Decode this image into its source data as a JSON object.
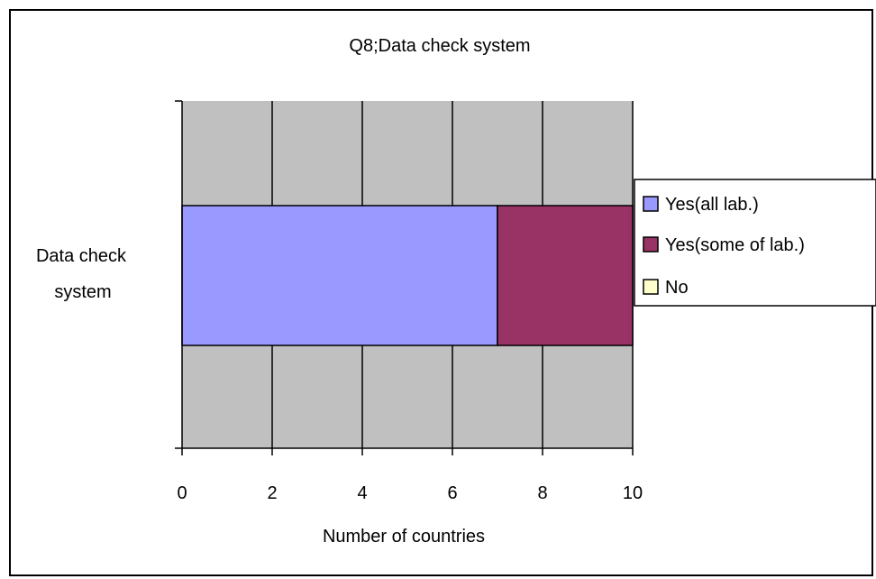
{
  "chart_data": {
    "type": "bar",
    "orientation": "horizontal",
    "stacked": true,
    "title": "Q8;Data check system",
    "xlabel": "Number of countries",
    "ylabel": "",
    "categories": [
      "Data check system"
    ],
    "category_lines": [
      "Data check",
      "system"
    ],
    "series": [
      {
        "name": "Yes(all lab.)",
        "values": [
          7
        ],
        "color": "#9999ff"
      },
      {
        "name": "Yes(some of lab.)",
        "values": [
          3
        ],
        "color": "#993366"
      },
      {
        "name": "No",
        "values": [
          0
        ],
        "color": "#ffffcc"
      }
    ],
    "xlim": [
      0,
      10
    ],
    "xticks": [
      0,
      2,
      4,
      6,
      8,
      10
    ],
    "grid": true,
    "plot_background": "#c0c0c0",
    "legend_position": "right"
  }
}
